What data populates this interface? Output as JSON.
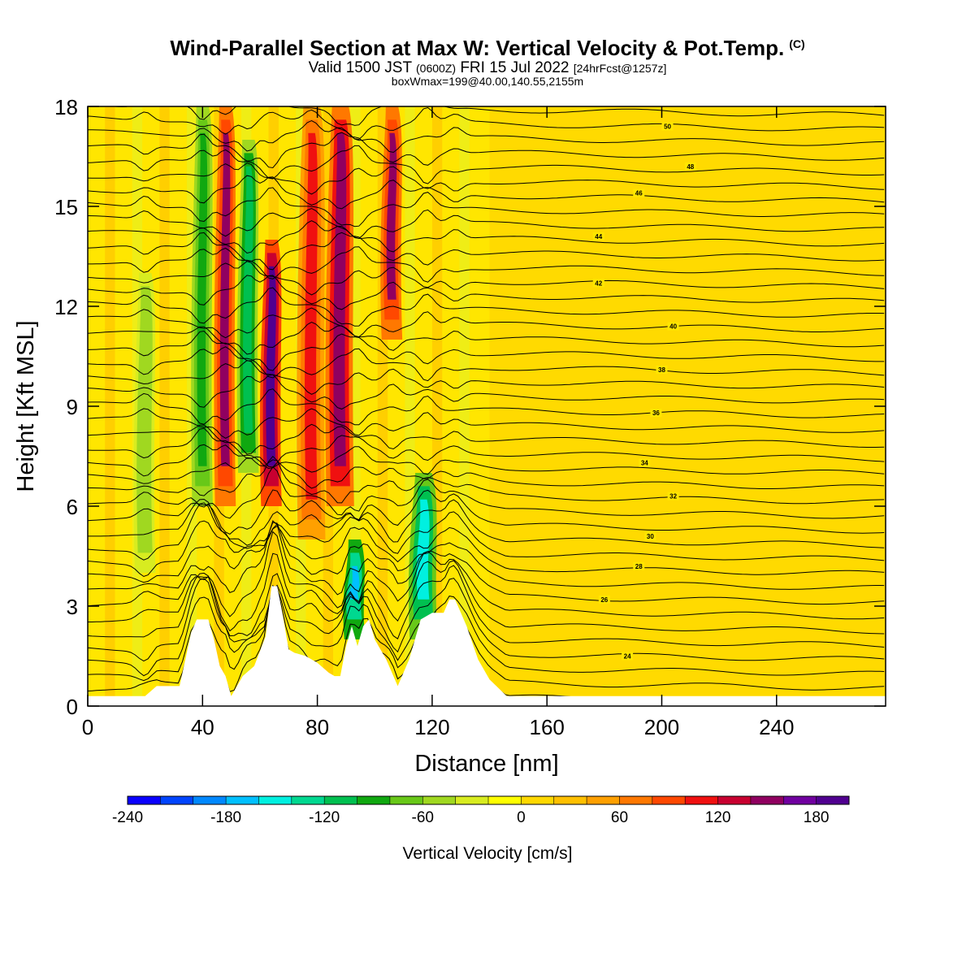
{
  "title": {
    "main": "Wind-Parallel Section at Max W: Vertical Velocity & Pot.Temp.",
    "copyright": "(C)",
    "valid_prefix": "Valid 1500 JST",
    "valid_utc": "(0600Z)",
    "valid_date": "FRI 15 Jul 2022",
    "forecast": "[24hrFcst@1257z]",
    "box": "boxWmax=199@40.00,140.55,2155m"
  },
  "chart_data": {
    "type": "heatmap",
    "xlabel": "Distance [nm]",
    "ylabel": "Height [Kft MSL]",
    "xlim": [
      0,
      278
    ],
    "ylim": [
      0,
      18
    ],
    "x_ticks": [
      0,
      40,
      80,
      120,
      160,
      200,
      240
    ],
    "y_ticks": [
      0,
      3,
      6,
      9,
      12,
      15,
      18
    ],
    "colorbar": {
      "title": "Vertical Velocity [cm/s]",
      "min": -240,
      "max": 200,
      "step": 20,
      "tick_values": [
        -240,
        -180,
        -120,
        -60,
        0,
        60,
        120,
        180
      ],
      "tick_labels": [
        "-240",
        "-180",
        "-120",
        "-60",
        "0",
        "60",
        "120",
        "180"
      ],
      "colors": [
        "#0a00ff",
        "#0044ff",
        "#0088ff",
        "#00c0ff",
        "#00f0e0",
        "#00d890",
        "#00c050",
        "#10a810",
        "#68c818",
        "#a0d820",
        "#d8ec20",
        "#ffff00",
        "#ffd800",
        "#ffc000",
        "#ffa000",
        "#ff7800",
        "#ff4800",
        "#f01010",
        "#c80030",
        "#900060",
        "#7000a0",
        "#500090"
      ]
    },
    "terrain": [
      [
        0,
        0.3
      ],
      [
        20,
        0.3
      ],
      [
        24,
        0.6
      ],
      [
        32,
        0.6
      ],
      [
        34,
        1.4
      ],
      [
        36,
        2.2
      ],
      [
        38,
        2.6
      ],
      [
        42,
        2.6
      ],
      [
        44,
        2.0
      ],
      [
        46,
        1.2
      ],
      [
        48,
        0.9
      ],
      [
        50,
        0.3
      ],
      [
        54,
        0.9
      ],
      [
        58,
        1.2
      ],
      [
        62,
        2.1
      ],
      [
        64,
        3.6
      ],
      [
        66,
        3.6
      ],
      [
        68,
        2.7
      ],
      [
        70,
        1.7
      ],
      [
        72,
        1.6
      ],
      [
        76,
        1.5
      ],
      [
        80,
        1.3
      ],
      [
        84,
        1.0
      ],
      [
        86,
        0.9
      ],
      [
        88,
        0.9
      ],
      [
        90,
        1.8
      ],
      [
        92,
        2.4
      ],
      [
        94,
        1.8
      ],
      [
        96,
        2.4
      ],
      [
        98,
        2.6
      ],
      [
        100,
        2.0
      ],
      [
        104,
        1.4
      ],
      [
        108,
        0.6
      ],
      [
        112,
        1.4
      ],
      [
        116,
        2.6
      ],
      [
        120,
        2.8
      ],
      [
        124,
        2.8
      ],
      [
        126,
        3.2
      ],
      [
        128,
        3.2
      ],
      [
        132,
        2.4
      ],
      [
        136,
        1.4
      ],
      [
        140,
        0.8
      ],
      [
        146,
        0.3
      ],
      [
        278,
        0.3
      ]
    ],
    "theta_contours": {
      "units": "K (offset labels)",
      "label_values": [
        24,
        26,
        28,
        30,
        32,
        34,
        36,
        38,
        40,
        42,
        44,
        46,
        48,
        50
      ],
      "labels": [
        {
          "x": 188,
          "y": 1.5,
          "text": "24"
        },
        {
          "x": 180,
          "y": 3.2,
          "text": "26"
        },
        {
          "x": 192,
          "y": 4.2,
          "text": "28"
        },
        {
          "x": 196,
          "y": 5.1,
          "text": "30"
        },
        {
          "x": 204,
          "y": 6.3,
          "text": "32"
        },
        {
          "x": 194,
          "y": 7.3,
          "text": "34"
        },
        {
          "x": 198,
          "y": 8.8,
          "text": "36"
        },
        {
          "x": 200,
          "y": 10.1,
          "text": "38"
        },
        {
          "x": 204,
          "y": 11.4,
          "text": "40"
        },
        {
          "x": 178,
          "y": 12.7,
          "text": "42"
        },
        {
          "x": 178,
          "y": 14.1,
          "text": "44"
        },
        {
          "x": 192,
          "y": 15.4,
          "text": "46"
        },
        {
          "x": 210,
          "y": 16.2,
          "text": "48"
        },
        {
          "x": 202,
          "y": 17.4,
          "text": "50"
        }
      ]
    },
    "updrafts": [
      {
        "x": 48,
        "w": 3,
        "ybot": 6,
        "ytop": 18,
        "value": 140
      },
      {
        "x": 64,
        "w": 3,
        "ybot": 6,
        "ytop": 14,
        "value": 180
      },
      {
        "x": 78,
        "w": 4,
        "ybot": 5,
        "ytop": 18,
        "value": 110
      },
      {
        "x": 88,
        "w": 4,
        "ybot": 6,
        "ytop": 18,
        "value": 150
      },
      {
        "x": 106,
        "w": 3,
        "ybot": 11,
        "ytop": 18,
        "value": 140
      }
    ],
    "downdrafts": [
      {
        "x": 20,
        "w": 3,
        "ybot": 4,
        "ytop": 13,
        "value": -60
      },
      {
        "x": 40,
        "w": 3,
        "ybot": 6,
        "ytop": 18,
        "value": -100
      },
      {
        "x": 56,
        "w": 3,
        "ybot": 7,
        "ytop": 17,
        "value": -120
      },
      {
        "x": 93,
        "w": 3,
        "ybot": 2,
        "ytop": 5,
        "value": -180
      },
      {
        "x": 117,
        "w": 4,
        "ybot": 2,
        "ytop": 7,
        "value": -160
      }
    ]
  }
}
